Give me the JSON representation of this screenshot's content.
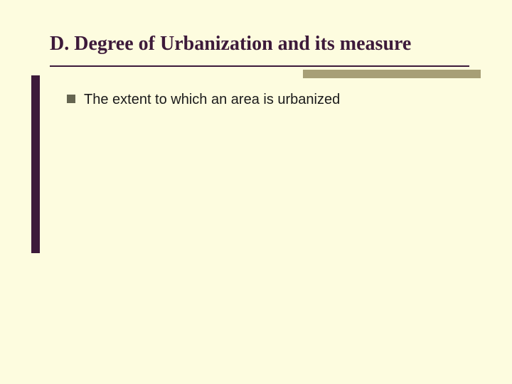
{
  "colors": {
    "slide_bg": "#fdfcdf",
    "title_text": "#3d1a3a",
    "underline": "#3d1a3a",
    "shadow_box": "#a79f76",
    "left_bar": "#3d1a3a",
    "bullet_square": "#656550",
    "body_text": "#1a1a1a"
  },
  "title": {
    "text": "D. Degree of Urbanization and its measure"
  },
  "bullets": [
    {
      "text": "The extent to which an area is urbanized"
    }
  ]
}
